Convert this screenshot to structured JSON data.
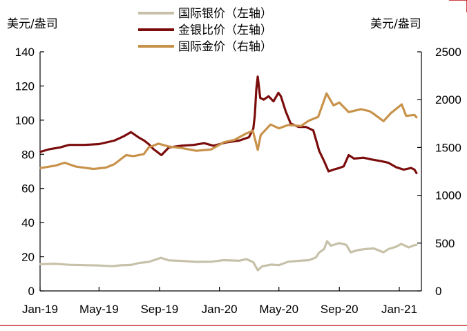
{
  "chart_data": {
    "type": "line",
    "y_unit_left": "美元/盎司",
    "y_unit_right": "美元/盎司",
    "x_ticks": [
      "Jan-19",
      "May-19",
      "Sep-19",
      "Jan-20",
      "May-20",
      "Sep-20",
      "Jan-21"
    ],
    "y_left_ticks": [
      "0",
      "20",
      "40",
      "60",
      "80",
      "100",
      "120",
      "140"
    ],
    "y_right_ticks": [
      "0",
      "500",
      "1000",
      "1500",
      "2000",
      "2500"
    ],
    "ylim_left": [
      0,
      140
    ],
    "ylim_right": [
      0,
      2500
    ],
    "xlim": [
      "2019-01-01",
      "2021-02-15"
    ],
    "legend_position": "top-center",
    "grid": false,
    "series": [
      {
        "name": "国际银价（左轴）",
        "axis": "left",
        "color": "#c6c1a8",
        "points": [
          [
            "2019-01-02",
            15.7
          ],
          [
            "2019-02-01",
            15.9
          ],
          [
            "2019-03-01",
            15.3
          ],
          [
            "2019-04-01",
            15.1
          ],
          [
            "2019-05-01",
            14.9
          ],
          [
            "2019-05-28",
            14.5
          ],
          [
            "2019-06-15",
            15.0
          ],
          [
            "2019-07-05",
            15.2
          ],
          [
            "2019-07-20",
            16.3
          ],
          [
            "2019-08-10",
            17.0
          ],
          [
            "2019-09-04",
            19.4
          ],
          [
            "2019-09-20",
            17.9
          ],
          [
            "2019-10-15",
            17.6
          ],
          [
            "2019-11-15",
            17.0
          ],
          [
            "2019-12-15",
            17.1
          ],
          [
            "2020-01-10",
            18.0
          ],
          [
            "2020-02-10",
            17.7
          ],
          [
            "2020-02-25",
            18.6
          ],
          [
            "2020-03-10",
            16.8
          ],
          [
            "2020-03-19",
            12.1
          ],
          [
            "2020-03-28",
            14.4
          ],
          [
            "2020-04-15",
            15.4
          ],
          [
            "2020-05-01",
            15.1
          ],
          [
            "2020-05-20",
            17.1
          ],
          [
            "2020-06-10",
            17.6
          ],
          [
            "2020-07-01",
            18.0
          ],
          [
            "2020-07-15",
            19.5
          ],
          [
            "2020-07-22",
            22.5
          ],
          [
            "2020-08-01",
            24.5
          ],
          [
            "2020-08-07",
            29.1
          ],
          [
            "2020-08-15",
            26.5
          ],
          [
            "2020-09-01",
            28.0
          ],
          [
            "2020-09-15",
            27.0
          ],
          [
            "2020-09-24",
            22.6
          ],
          [
            "2020-10-10",
            24.0
          ],
          [
            "2020-10-25",
            24.5
          ],
          [
            "2020-11-10",
            24.9
          ],
          [
            "2020-11-30",
            22.6
          ],
          [
            "2020-12-10",
            24.5
          ],
          [
            "2020-12-25",
            25.8
          ],
          [
            "2021-01-05",
            27.5
          ],
          [
            "2021-01-20",
            25.5
          ],
          [
            "2021-02-01",
            26.8
          ],
          [
            "2021-02-05",
            27.0
          ]
        ]
      },
      {
        "name": "金银比价（左轴）",
        "axis": "left",
        "color": "#7b0c0c",
        "points": [
          [
            "2019-01-02",
            81.5
          ],
          [
            "2019-01-20",
            83.0
          ],
          [
            "2019-02-10",
            84.0
          ],
          [
            "2019-03-01",
            85.5
          ],
          [
            "2019-04-01",
            85.5
          ],
          [
            "2019-05-01",
            86.0
          ],
          [
            "2019-06-01",
            88.0
          ],
          [
            "2019-06-20",
            90.5
          ],
          [
            "2019-07-05",
            93.0
          ],
          [
            "2019-07-20",
            90.0
          ],
          [
            "2019-08-01",
            88.0
          ],
          [
            "2019-08-10",
            86.0
          ],
          [
            "2019-08-20",
            83.0
          ],
          [
            "2019-09-05",
            79.5
          ],
          [
            "2019-09-20",
            84.0
          ],
          [
            "2019-10-15",
            85.0
          ],
          [
            "2019-11-10",
            85.5
          ],
          [
            "2019-12-01",
            86.5
          ],
          [
            "2019-12-20",
            85.0
          ],
          [
            "2020-01-15",
            87.0
          ],
          [
            "2020-02-10",
            88.0
          ],
          [
            "2020-03-01",
            90.0
          ],
          [
            "2020-03-10",
            95.0
          ],
          [
            "2020-03-13",
            103.0
          ],
          [
            "2020-03-16",
            118.0
          ],
          [
            "2020-03-19",
            125.5
          ],
          [
            "2020-03-24",
            113.0
          ],
          [
            "2020-03-31",
            112.0
          ],
          [
            "2020-04-10",
            114.0
          ],
          [
            "2020-04-20",
            111.0
          ],
          [
            "2020-04-30",
            116.0
          ],
          [
            "2020-05-05",
            114.0
          ],
          [
            "2020-05-15",
            105.0
          ],
          [
            "2020-05-25",
            98.0
          ],
          [
            "2020-06-10",
            96.0
          ],
          [
            "2020-06-25",
            96.0
          ],
          [
            "2020-07-10",
            94.0
          ],
          [
            "2020-07-16",
            88.0
          ],
          [
            "2020-07-22",
            82.0
          ],
          [
            "2020-08-01",
            76.0
          ],
          [
            "2020-08-10",
            70.0
          ],
          [
            "2020-08-20",
            71.0
          ],
          [
            "2020-09-01",
            72.0
          ],
          [
            "2020-09-10",
            73.0
          ],
          [
            "2020-09-20",
            79.5
          ],
          [
            "2020-10-01",
            77.5
          ],
          [
            "2020-10-20",
            78.0
          ],
          [
            "2020-11-05",
            77.0
          ],
          [
            "2020-11-25",
            76.0
          ],
          [
            "2020-12-10",
            75.0
          ],
          [
            "2020-12-25",
            72.5
          ],
          [
            "2021-01-10",
            71.0
          ],
          [
            "2021-01-25",
            72.0
          ],
          [
            "2021-02-01",
            71.0
          ],
          [
            "2021-02-05",
            69.0
          ]
        ]
      },
      {
        "name": "国际金价（右轴）",
        "axis": "right",
        "color": "#c8924a",
        "points": [
          [
            "2019-01-02",
            1285
          ],
          [
            "2019-02-01",
            1310
          ],
          [
            "2019-02-20",
            1340
          ],
          [
            "2019-03-15",
            1300
          ],
          [
            "2019-04-20",
            1275
          ],
          [
            "2019-05-15",
            1290
          ],
          [
            "2019-06-01",
            1325
          ],
          [
            "2019-06-25",
            1420
          ],
          [
            "2019-07-10",
            1410
          ],
          [
            "2019-07-31",
            1430
          ],
          [
            "2019-08-10",
            1500
          ],
          [
            "2019-08-30",
            1540
          ],
          [
            "2019-09-20",
            1510
          ],
          [
            "2019-10-15",
            1495
          ],
          [
            "2019-11-15",
            1465
          ],
          [
            "2019-12-15",
            1478
          ],
          [
            "2020-01-10",
            1555
          ],
          [
            "2020-02-01",
            1580
          ],
          [
            "2020-02-24",
            1645
          ],
          [
            "2020-03-09",
            1675
          ],
          [
            "2020-03-19",
            1475
          ],
          [
            "2020-03-25",
            1630
          ],
          [
            "2020-04-14",
            1740
          ],
          [
            "2020-05-01",
            1700
          ],
          [
            "2020-05-20",
            1735
          ],
          [
            "2020-06-15",
            1725
          ],
          [
            "2020-07-01",
            1780
          ],
          [
            "2020-07-20",
            1820
          ],
          [
            "2020-08-06",
            2065
          ],
          [
            "2020-08-20",
            1940
          ],
          [
            "2020-09-01",
            1970
          ],
          [
            "2020-09-20",
            1870
          ],
          [
            "2020-10-15",
            1900
          ],
          [
            "2020-11-01",
            1880
          ],
          [
            "2020-11-09",
            1855
          ],
          [
            "2020-11-30",
            1775
          ],
          [
            "2020-12-15",
            1860
          ],
          [
            "2021-01-06",
            1950
          ],
          [
            "2021-01-15",
            1830
          ],
          [
            "2021-02-01",
            1840
          ],
          [
            "2021-02-05",
            1815
          ]
        ]
      }
    ]
  }
}
